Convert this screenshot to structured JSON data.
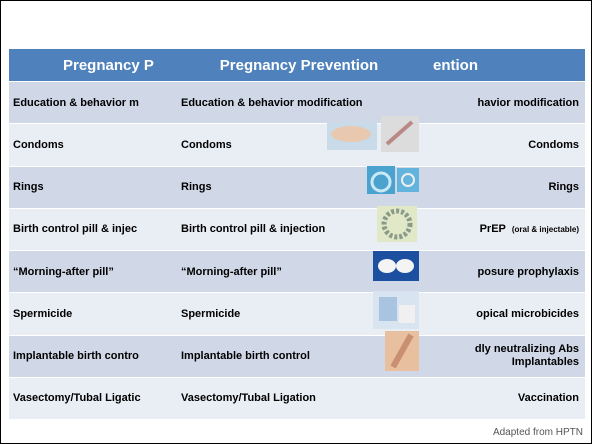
{
  "left_table": {
    "header": "Pregnancy P",
    "rows": [
      "Education & behavior m",
      "Condoms",
      "Rings",
      "Birth control pill & injec",
      "“Morning-after pill”",
      "Spermicide",
      "Implantable birth contro",
      "Vasectomy/Tubal Ligatic"
    ]
  },
  "middle_table": {
    "header": "Pregnancy Prevention",
    "rows": [
      "Education & behavior modification",
      "Condoms",
      "Rings",
      "Birth control pill & injection",
      "“Morning-after pill”",
      "Spermicide",
      "Implantable birth control",
      "Vasectomy/Tubal Ligation"
    ]
  },
  "right_table": {
    "header": "ention",
    "rows": [
      {
        "text": "havior modification"
      },
      {
        "text": "Condoms"
      },
      {
        "text": "Rings"
      },
      {
        "text": "PrEP",
        "note": "(oral & injectable)"
      },
      {
        "text": "posure prophylaxis"
      },
      {
        "text": "opical microbicides"
      },
      {
        "lines": [
          "dly neutralizing Abs",
          "Implantables"
        ]
      },
      {
        "text": "Vaccination"
      }
    ]
  },
  "footer": "Adapted from HPTN"
}
